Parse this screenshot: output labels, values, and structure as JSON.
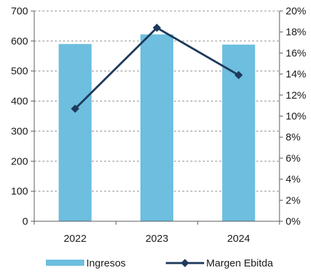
{
  "chart_data": {
    "type": "bar",
    "categories": [
      "2022",
      "2023",
      "2024"
    ],
    "series": [
      {
        "name": "Ingresos",
        "type": "bar",
        "axis": "left",
        "color": "#6DBEDF",
        "values": [
          590,
          622,
          588
        ]
      },
      {
        "name": "Margen Ebitda",
        "type": "line",
        "axis": "right",
        "color": "#1F3A5C",
        "marker": "diamond",
        "values": [
          10.7,
          18.4,
          13.9
        ]
      }
    ],
    "ylim_left": [
      0,
      700
    ],
    "yticks_left": [
      0,
      100,
      200,
      300,
      400,
      500,
      600,
      700
    ],
    "ylim_right": [
      0,
      20
    ],
    "yticks_right": [
      "0%",
      "2%",
      "4%",
      "6%",
      "8%",
      "10%",
      "12%",
      "14%",
      "16%",
      "18%",
      "20%"
    ],
    "grid": "horizontal dashed",
    "legend_position": "bottom"
  }
}
